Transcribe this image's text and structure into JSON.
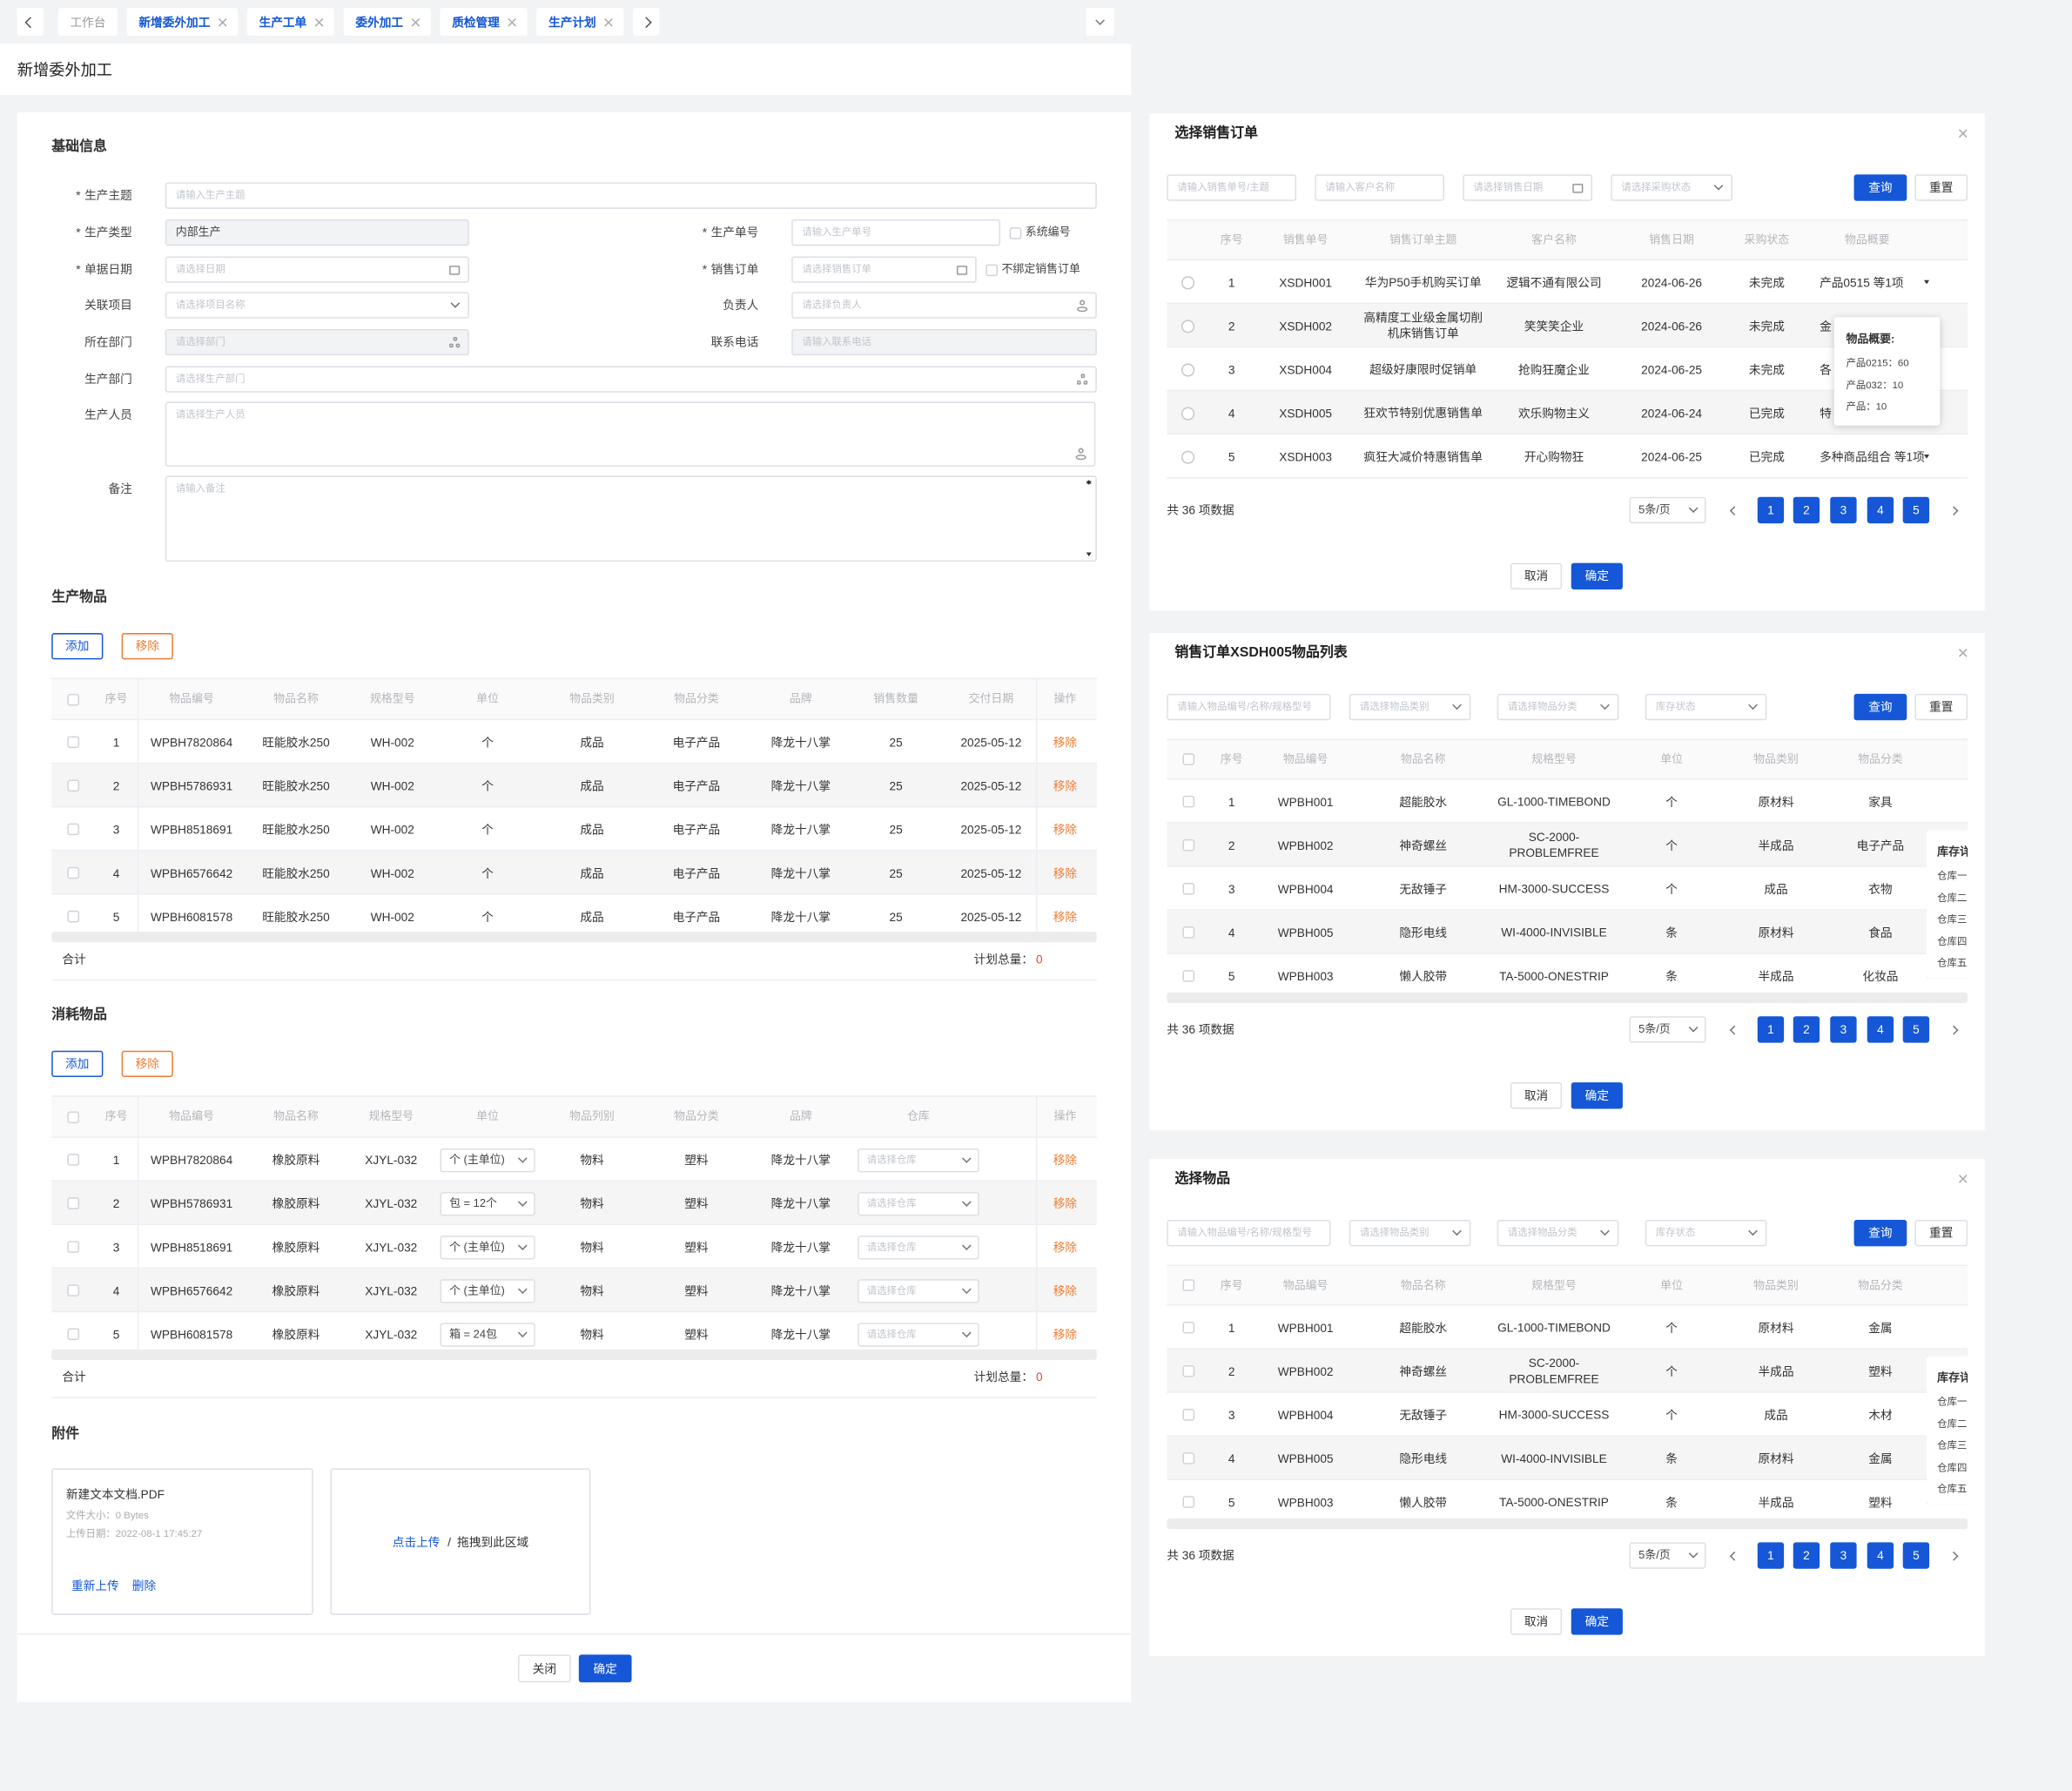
{
  "tabs": [
    "工作台",
    "新增委外加工",
    "生产工单",
    "委外加工",
    "质检管理",
    "生产计划"
  ],
  "page_title": "新增委外加工",
  "basic_info": {
    "title": "基础信息",
    "required_mark": "*",
    "fields": [
      {
        "label": "生产主题",
        "required": true,
        "placeholder": "请输入生产主题"
      },
      {
        "label": "生产类型",
        "required": true,
        "value": "内部生产"
      },
      {
        "label": "生产单号",
        "required": true,
        "placeholder": "请输入生产单号",
        "checkbox": "系统编号"
      },
      {
        "label": "单据日期",
        "required": true,
        "placeholder": "请选择日期"
      },
      {
        "label": "销售订单",
        "required": true,
        "placeholder": "请选择销售订单",
        "checkbox": "不绑定销售订单"
      },
      {
        "label": "关联项目",
        "placeholder": "请选择项目名称"
      },
      {
        "label": "负责人",
        "placeholder": "请选择负责人"
      },
      {
        "label": "所在部门",
        "placeholder": "请选择部门"
      },
      {
        "label": "联系电话",
        "placeholder": "请输入联系电话"
      },
      {
        "label": "生产部门",
        "placeholder": "请选择生产部门"
      },
      {
        "label": "生产人员",
        "placeholder": "请选择生产人员"
      },
      {
        "label": "备注",
        "placeholder": "请输入备注"
      }
    ]
  },
  "products": {
    "title": "生产物品",
    "add": "添加",
    "remove": "移除",
    "columns": [
      "序号",
      "物品编号",
      "物品名称",
      "规格型号",
      "单位",
      "物品类别",
      "物品分类",
      "品牌",
      "销售数量",
      "交付日期",
      "操作"
    ],
    "rows": [
      [
        1,
        "WPBH7820864",
        "旺能胶水250",
        "WH-002",
        "个",
        "成品",
        "电子产品",
        "降龙十八掌",
        25,
        "2025-05-12",
        "移除"
      ],
      [
        2,
        "WPBH5786931",
        "旺能胶水250",
        "WH-002",
        "个",
        "成品",
        "电子产品",
        "降龙十八掌",
        25,
        "2025-05-12",
        "移除"
      ],
      [
        3,
        "WPBH8518691",
        "旺能胶水250",
        "WH-002",
        "个",
        "成品",
        "电子产品",
        "降龙十八掌",
        25,
        "2025-05-12",
        "移除"
      ],
      [
        4,
        "WPBH6576642",
        "旺能胶水250",
        "WH-002",
        "个",
        "成品",
        "电子产品",
        "降龙十八掌",
        25,
        "2025-05-12",
        "移除"
      ],
      [
        5,
        "WPBH6081578",
        "旺能胶水250",
        "WH-002",
        "个",
        "成品",
        "电子产品",
        "降龙十八掌",
        25,
        "2025-05-12",
        "移除"
      ]
    ],
    "total_label": "合计",
    "plan_label": "计划总量：",
    "plan_total": 0
  },
  "consumables": {
    "title": "消耗物品",
    "add": "添加",
    "remove": "移除",
    "columns": [
      "序号",
      "物品编号",
      "物品名称",
      "规格型号",
      "单位",
      "物品列别",
      "物品分类",
      "品牌",
      "仓库",
      "操作"
    ],
    "rows": [
      [
        1,
        "WPBH7820864",
        "橡胶原料",
        "XJYL-032",
        "个 (主单位)",
        "物料",
        "塑料",
        "降龙十八掌",
        "请选择仓库",
        "移除"
      ],
      [
        2,
        "WPBH5786931",
        "橡胶原料",
        "XJYL-032",
        "包 = 12个",
        "物料",
        "塑料",
        "降龙十八掌",
        "请选择仓库",
        "移除"
      ],
      [
        3,
        "WPBH8518691",
        "橡胶原料",
        "XJYL-032",
        "个 (主单位)",
        "物料",
        "塑料",
        "降龙十八掌",
        "请选择仓库",
        "移除"
      ],
      [
        4,
        "WPBH6576642",
        "橡胶原料",
        "XJYL-032",
        "个 (主单位)",
        "物料",
        "塑料",
        "降龙十八掌",
        "请选择仓库",
        "移除"
      ],
      [
        5,
        "WPBH6081578",
        "橡胶原料",
        "XJYL-032",
        "箱 = 24包",
        "物料",
        "塑料",
        "降龙十八掌",
        "请选择仓库",
        "移除"
      ]
    ],
    "total_label": "合计",
    "plan_label": "计划总量：",
    "plan_total": 0
  },
  "attachment": {
    "title": "附件",
    "file": {
      "name": "新建文本文档.PDF",
      "size": "文件大小：0 Bytes",
      "date": "上传日期：2022-08-1 17:45:27",
      "reupload": "重新上传",
      "delete": "删除"
    },
    "upload": {
      "link": "点击上传",
      "separator": "/",
      "hint": "拖拽到此区域"
    }
  },
  "footer": {
    "close": "关闭",
    "confirm": "确定"
  },
  "modals": [
    {
      "title": "选择销售订单",
      "filters": [
        "请输入销售单号/主题",
        "请输入客户名称",
        "请选择销售日期",
        "请选择采购状态"
      ],
      "query": "查询",
      "reset": "重置",
      "columns": [
        "序号",
        "销售单号",
        "销售订单主题",
        "客户名称",
        "销售日期",
        "采购状态",
        "物品概要"
      ],
      "rows": [
        [
          1,
          "XSDH001",
          "华为P50手机购买订单",
          "逻辑不通有限公司",
          "2024-06-26",
          "未完成",
          "产品0515  等1项"
        ],
        [
          2,
          "XSDH002",
          "高精度工业级金属切削机床销售订单",
          "笑笑笑企业",
          "2024-06-26",
          "未完成",
          "金"
        ],
        [
          3,
          "XSDH004",
          "超级好康限时促销单",
          "抢购狂魔企业",
          "2024-06-25",
          "未完成",
          "各"
        ],
        [
          4,
          "XSDH005",
          "狂欢节特别优惠销售单",
          "欢乐购物主义",
          "2024-06-24",
          "已完成",
          "特"
        ],
        [
          5,
          "XSDH003",
          "疯狂大减价特惠销售单",
          "开心购物狂",
          "2024-06-25",
          "已完成",
          "多种商品组合  等1项"
        ]
      ],
      "popover": {
        "title": "物品概要:",
        "items": [
          "产品0215：60",
          "产品032：10",
          "产品：10"
        ]
      },
      "total": "共 36 项数据",
      "page_size": "5条/页",
      "pages": [
        1,
        2,
        3,
        4,
        5
      ],
      "cancel": "取消",
      "confirm": "确定"
    },
    {
      "title": "销售订单XSDH005物品列表",
      "filters": [
        "请输入物品编号/名称/规格型号",
        "请选择物品类别",
        "请选择物品分类",
        "库存状态"
      ],
      "query": "查询",
      "reset": "重置",
      "columns": [
        "序号",
        "物品编号",
        "物品名称",
        "规格型号",
        "单位",
        "物品类别",
        "物品分类"
      ],
      "rows": [
        [
          1,
          "WPBH001",
          "超能胶水",
          "GL-1000-TIMEBOND",
          "个",
          "原材料",
          "家具"
        ],
        [
          2,
          "WPBH002",
          "神奇螺丝",
          "SC-2000-PROBLEMFREE",
          "个",
          "半成品",
          "电子产品"
        ],
        [
          3,
          "WPBH004",
          "无敌锤子",
          "HM-3000-SUCCESS",
          "个",
          "成品",
          "衣物"
        ],
        [
          4,
          "WPBH005",
          "隐形电线",
          "WI-4000-INVISIBLE",
          "条",
          "原材料",
          "食品"
        ],
        [
          5,
          "WPBH003",
          "懒人胶带",
          "TA-5000-ONESTRIP",
          "条",
          "半成品",
          "化妆品"
        ]
      ],
      "popover": {
        "title": "库存详情",
        "items": [
          "仓库一",
          "仓库二",
          "仓库三",
          "仓库四",
          "仓库五"
        ]
      },
      "total": "共 36 项数据",
      "page_size": "5条/页",
      "pages": [
        1,
        2,
        3,
        4,
        5
      ],
      "cancel": "取消",
      "confirm": "确定"
    },
    {
      "title": "选择物品",
      "filters": [
        "请输入物品编号/名称/规格型号",
        "请选择物品类别",
        "请选择物品分类",
        "库存状态"
      ],
      "query": "查询",
      "reset": "重置",
      "columns": [
        "序号",
        "物品编号",
        "物品名称",
        "规格型号",
        "单位",
        "物品类别",
        "物品分类"
      ],
      "rows": [
        [
          1,
          "WPBH001",
          "超能胶水",
          "GL-1000-TIMEBOND",
          "个",
          "原材料",
          "金属"
        ],
        [
          2,
          "WPBH002",
          "神奇螺丝",
          "SC-2000-PROBLEMFREE",
          "个",
          "半成品",
          "塑料"
        ],
        [
          3,
          "WPBH004",
          "无敌锤子",
          "HM-3000-SUCCESS",
          "个",
          "成品",
          "木材"
        ],
        [
          4,
          "WPBH005",
          "隐形电线",
          "WI-4000-INVISIBLE",
          "条",
          "原材料",
          "金属"
        ],
        [
          5,
          "WPBH003",
          "懒人胶带",
          "TA-5000-ONESTRIP",
          "条",
          "半成品",
          "塑料"
        ]
      ],
      "popover": {
        "title": "库存详情",
        "items": [
          "仓库一",
          "仓库二",
          "仓库三",
          "仓库四",
          "仓库五"
        ]
      },
      "total": "共 36 项数据",
      "page_size": "5条/页",
      "pages": [
        1,
        2,
        3,
        4,
        5
      ],
      "cancel": "取消",
      "confirm": "确定"
    }
  ]
}
